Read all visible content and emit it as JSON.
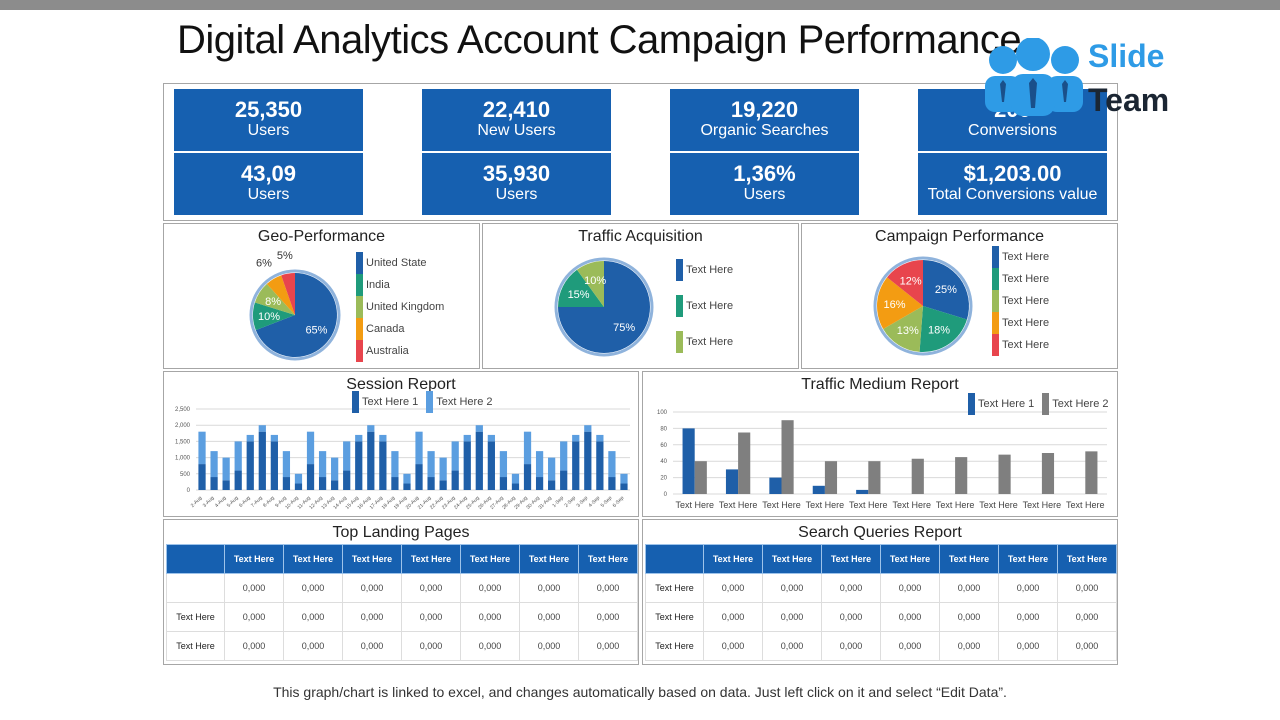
{
  "title": "Digital Analytics Account Campaign Performance",
  "logo": {
    "line1": "Slide",
    "line2": "Team"
  },
  "kpis": [
    {
      "value": "25,350",
      "label": "Users"
    },
    {
      "value": "22,410",
      "label": "New Users"
    },
    {
      "value": "19,220",
      "label": "Organic Searches"
    },
    {
      "value": "200",
      "label": "Conversions"
    },
    {
      "value": "43,09",
      "label": "Users"
    },
    {
      "value": "35,930",
      "label": "Users"
    },
    {
      "value": "1,36%",
      "label": "Users"
    },
    {
      "value": "$1,203.00",
      "label": "Total Conversions value"
    }
  ],
  "colors": {
    "blue": "#1f5fa8",
    "teal": "#1f9b7b",
    "green": "#9bbb59",
    "orange": "#f39c12",
    "red": "#e8454d",
    "lightblue": "#5b9ee0",
    "gray": "#7f7f7f",
    "tile": "#1660b0"
  },
  "chart_data": [
    {
      "type": "pie",
      "title": "Geo-Performance",
      "labels": [
        "United State",
        "India",
        "United Kingdom",
        "Canada",
        "Australia"
      ],
      "values": [
        65,
        10,
        8,
        6,
        5
      ],
      "colors": [
        "#1f5fa8",
        "#1f9b7b",
        "#9bbb59",
        "#f39c12",
        "#e8454d"
      ],
      "legend": "right"
    },
    {
      "type": "pie",
      "title": "Traffic Acquisition",
      "labels": [
        "Text Here",
        "Text Here",
        "Text Here"
      ],
      "values": [
        75,
        15,
        10
      ],
      "colors": [
        "#1f5fa8",
        "#1f9b7b",
        "#9bbb59"
      ],
      "legend": "right"
    },
    {
      "type": "pie",
      "title": "Campaign Performance",
      "labels": [
        "Text Here",
        "Text Here",
        "Text Here",
        "Text Here",
        "Text Here"
      ],
      "values": [
        25,
        18,
        13,
        16,
        12
      ],
      "colors": [
        "#1f5fa8",
        "#1f9b7b",
        "#9bbb59",
        "#f39c12",
        "#e8454d"
      ],
      "legend": "right"
    },
    {
      "type": "bar",
      "stacked": true,
      "title": "Session Report",
      "legend": "top",
      "ylim": [
        0,
        2500
      ],
      "yticks": [
        "0",
        "500",
        "1,000",
        "1,500",
        "2,000",
        "2,500"
      ],
      "grid": true,
      "categories": [
        "2-Aug",
        "3-Aug",
        "4-Aug",
        "5-Aug",
        "6-Aug",
        "7-Aug",
        "8-Aug",
        "9-Aug",
        "10-Aug",
        "11-Aug",
        "12-Aug",
        "13-Aug",
        "14-Aug",
        "15-Aug",
        "16-Aug",
        "17-Aug",
        "18-Aug",
        "19-Aug",
        "20-Aug",
        "21-Aug",
        "22-Aug",
        "23-Aug",
        "24-Aug",
        "25-Aug",
        "26-Aug",
        "27-Aug",
        "28-Aug",
        "29-Aug",
        "30-Aug",
        "31-Aug",
        "1-Sep",
        "2-Sep",
        "3-Sep",
        "4-Sep",
        "5-Sep",
        "6-Sep"
      ],
      "series": [
        {
          "name": "Text Here 1",
          "color": "#1f5fa8",
          "values": [
            800,
            400,
            300,
            600,
            1500,
            1800,
            1500,
            400,
            200,
            800,
            400,
            300,
            600,
            1500,
            1800,
            1500,
            400,
            200,
            800,
            400,
            300,
            600,
            1500,
            1800,
            1500,
            400,
            200,
            800,
            400,
            300,
            600,
            1500,
            1800,
            1500,
            400,
            200
          ]
        },
        {
          "name": "Text Here 2",
          "color": "#5b9ee0",
          "values": [
            1000,
            800,
            700,
            900,
            200,
            200,
            200,
            800,
            300,
            1000,
            800,
            700,
            900,
            200,
            200,
            200,
            800,
            300,
            1000,
            800,
            700,
            900,
            200,
            200,
            200,
            800,
            300,
            1000,
            800,
            700,
            900,
            200,
            200,
            200,
            800,
            300
          ]
        }
      ]
    },
    {
      "type": "bar",
      "title": "Traffic Medium Report",
      "legend": "top-right",
      "ylim": [
        0,
        100
      ],
      "yticks": [
        "0",
        "20",
        "40",
        "60",
        "80",
        "100"
      ],
      "grid": true,
      "categories": [
        "Text Here",
        "Text Here",
        "Text Here",
        "Text Here",
        "Text Here",
        "Text Here",
        "Text Here",
        "Text Here",
        "Text Here",
        "Text Here"
      ],
      "series": [
        {
          "name": "Text Here 1",
          "color": "#1f5fa8",
          "values": [
            80,
            30,
            20,
            10,
            5,
            0,
            0,
            0,
            0,
            0
          ]
        },
        {
          "name": "Text Here 2",
          "color": "#7f7f7f",
          "values": [
            40,
            75,
            90,
            40,
            40,
            43,
            45,
            48,
            50,
            52
          ]
        }
      ]
    }
  ],
  "tables": [
    {
      "title": "Top Landing Pages",
      "headers": [
        "",
        "Text Here",
        "Text Here",
        "Text Here",
        "Text Here",
        "Text Here",
        "Text Here",
        "Text Here"
      ],
      "rows": [
        [
          "",
          "0,000",
          "0,000",
          "0,000",
          "0,000",
          "0,000",
          "0,000",
          "0,000"
        ],
        [
          "Text Here",
          "0,000",
          "0,000",
          "0,000",
          "0,000",
          "0,000",
          "0,000",
          "0,000"
        ],
        [
          "Text Here",
          "0,000",
          "0,000",
          "0,000",
          "0,000",
          "0,000",
          "0,000",
          "0,000"
        ]
      ]
    },
    {
      "title": "Search Queries Report",
      "headers": [
        "",
        "Text Here",
        "Text Here",
        "Text Here",
        "Text Here",
        "Text Here",
        "Text Here",
        "Text Here"
      ],
      "rows": [
        [
          "Text Here",
          "0,000",
          "0,000",
          "0,000",
          "0,000",
          "0,000",
          "0,000",
          "0,000"
        ],
        [
          "Text Here",
          "0,000",
          "0,000",
          "0,000",
          "0,000",
          "0,000",
          "0,000",
          "0,000"
        ],
        [
          "Text Here",
          "0,000",
          "0,000",
          "0,000",
          "0,000",
          "0,000",
          "0,000",
          "0,000"
        ]
      ]
    }
  ],
  "footer": "This graph/chart is linked to excel, and changes automatically  based on data. Just left click on it and select “Edit Data”."
}
